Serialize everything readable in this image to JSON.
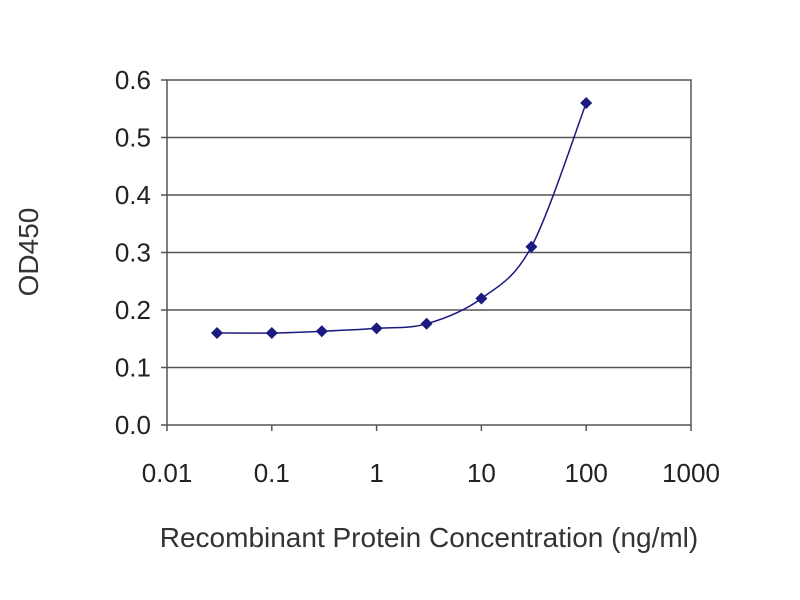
{
  "chart_data": {
    "type": "line",
    "xscale": "log",
    "xlabel": "Recombinant Protein Concentration (ng/ml)",
    "ylabel": "OD450",
    "x_ticks": [
      "0.01",
      "0.1",
      "1",
      "10",
      "100",
      "1000"
    ],
    "y_ticks": [
      "0.0",
      "0.1",
      "0.2",
      "0.3",
      "0.4",
      "0.5",
      "0.6"
    ],
    "xlim": [
      0.01,
      1000
    ],
    "ylim": [
      0.0,
      0.6
    ],
    "grid": "horizontal",
    "series": [
      {
        "x": [
          0.03,
          0.1,
          0.3,
          1,
          3,
          10,
          30,
          100
        ],
        "y": [
          0.16,
          0.16,
          0.163,
          0.168,
          0.176,
          0.22,
          0.31,
          0.56
        ]
      }
    ],
    "colors": {
      "series": "#1a1a80",
      "grid": "#555555",
      "frame": "#555555"
    }
  }
}
